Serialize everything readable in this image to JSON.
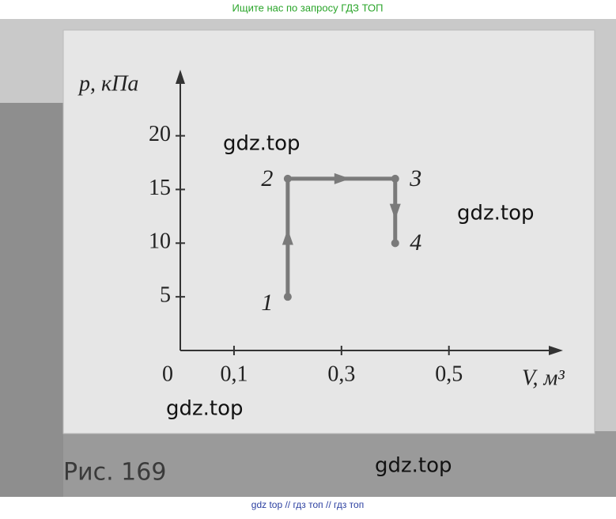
{
  "header": "Ищите нас по запросу ГДЗ ТОП",
  "watermarks": [
    "gdz.top",
    "gdz.top",
    "gdz.top",
    "gdz.top"
  ],
  "caption": "Рис. 169",
  "footer": "gdz top  //  гдз топ  //  гдз топ",
  "chart_data": {
    "type": "line",
    "xlabel": "V, м³",
    "ylabel": "p, кПа",
    "x": [
      0.2,
      0.2,
      0.4,
      0.4
    ],
    "series": [
      {
        "name": "1-2-3-4",
        "color": "#7a7a7a",
        "values": [
          5,
          16,
          16,
          10
        ]
      }
    ],
    "point_labels": [
      "1",
      "2",
      "3",
      "4"
    ],
    "xlim": [
      0,
      0.68
    ],
    "ylim": [
      0,
      25.5
    ],
    "xticks": [
      0,
      {
        "value": 0.1,
        "label": "0,1"
      },
      {
        "value": 0.3,
        "label": "0,3"
      },
      {
        "value": 0.5,
        "label": "0,5"
      }
    ],
    "yticks": [
      5,
      10,
      15,
      20
    ]
  }
}
